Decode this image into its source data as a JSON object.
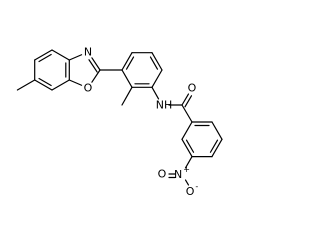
{
  "atoms": [
    {
      "label": "N"
    },
    {
      "label": "O"
    },
    {
      "label": "NH"
    },
    {
      "label": "O"
    },
    {
      "label": "N",
      "charge": "+"
    },
    {
      "label": "O"
    },
    {
      "label": "O",
      "charge": "-"
    }
  ]
}
